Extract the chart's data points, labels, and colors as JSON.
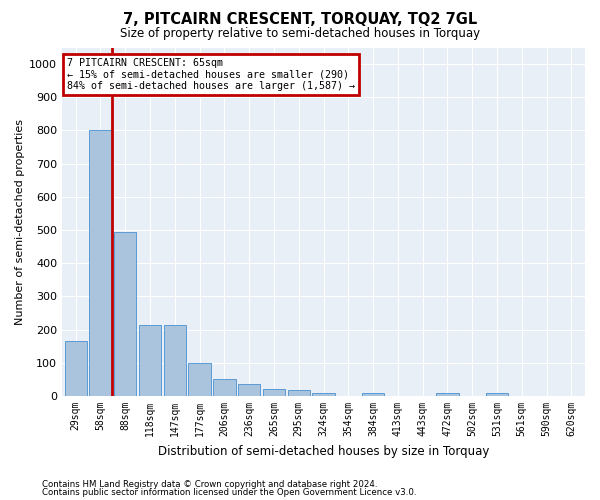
{
  "title": "7, PITCAIRN CRESCENT, TORQUAY, TQ2 7GL",
  "subtitle": "Size of property relative to semi-detached houses in Torquay",
  "xlabel": "Distribution of semi-detached houses by size in Torquay",
  "ylabel": "Number of semi-detached properties",
  "footnote1": "Contains HM Land Registry data © Crown copyright and database right 2024.",
  "footnote2": "Contains public sector information licensed under the Open Government Licence v3.0.",
  "categories": [
    "29sqm",
    "58sqm",
    "88sqm",
    "118sqm",
    "147sqm",
    "177sqm",
    "206sqm",
    "236sqm",
    "265sqm",
    "295sqm",
    "324sqm",
    "354sqm",
    "384sqm",
    "413sqm",
    "443sqm",
    "472sqm",
    "502sqm",
    "531sqm",
    "561sqm",
    "590sqm",
    "620sqm"
  ],
  "values": [
    165,
    800,
    495,
    215,
    215,
    100,
    52,
    35,
    20,
    18,
    10,
    0,
    10,
    0,
    0,
    10,
    0,
    10,
    0,
    0,
    0
  ],
  "bar_color": "#aac4de",
  "bar_edge_color": "#5b9bd5",
  "highlight_bar_color": "#c00000",
  "highlight_bar_index": 1,
  "annotation_text_line1": "7 PITCAIRN CRESCENT: 65sqm",
  "annotation_text_line2": "← 15% of semi-detached houses are smaller (290)",
  "annotation_text_line3": "84% of semi-detached houses are larger (1,587) →",
  "annotation_box_color": "#c00000",
  "ylim": [
    0,
    1050
  ],
  "yticks": [
    0,
    100,
    200,
    300,
    400,
    500,
    600,
    700,
    800,
    900,
    1000
  ],
  "plot_background": "#e8eff7",
  "grid_color": "#ffffff"
}
